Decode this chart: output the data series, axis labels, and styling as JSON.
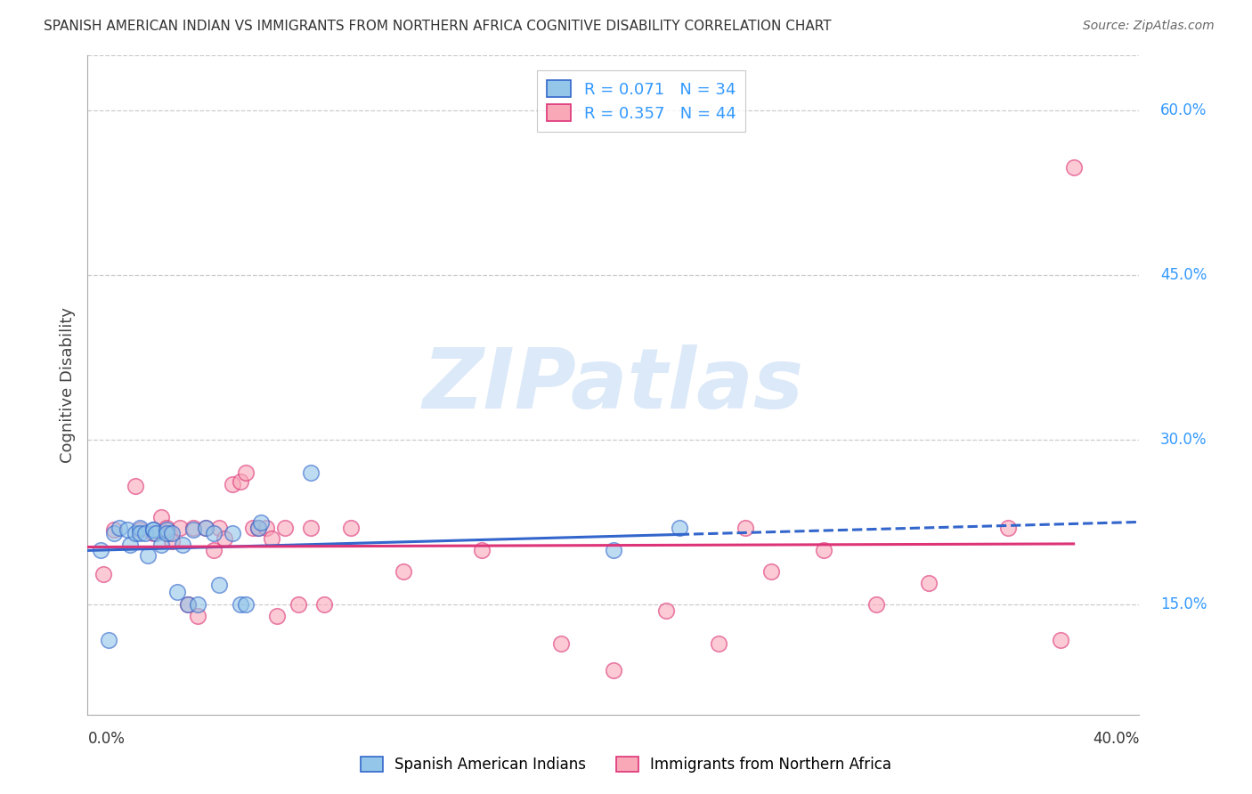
{
  "title": "SPANISH AMERICAN INDIAN VS IMMIGRANTS FROM NORTHERN AFRICA COGNITIVE DISABILITY CORRELATION CHART",
  "source": "Source: ZipAtlas.com",
  "ylabel": "Cognitive Disability",
  "label1": "Spanish American Indians",
  "label2": "Immigrants from Northern Africa",
  "color1": "#93c6e8",
  "color2": "#f9a8b8",
  "trendline1_color": "#3366cc",
  "trendline2_color": "#dd3377",
  "legend_text1": "R = 0.071   N = 34",
  "legend_text2": "R = 0.357   N = 44",
  "legend_color": "#3399ff",
  "watermark_text": "ZIPatlas",
  "watermark_color": "#dce9f8",
  "xmin": 0.0,
  "xmax": 0.4,
  "ymin": 0.05,
  "ymax": 0.65,
  "ytick_vals": [
    0.15,
    0.3,
    0.45,
    0.6
  ],
  "ytick_labels": [
    "15.0%",
    "30.0%",
    "45.0%",
    "60.0%"
  ],
  "blue_x": [
    0.005,
    0.008,
    0.01,
    0.012,
    0.015,
    0.016,
    0.018,
    0.02,
    0.02,
    0.022,
    0.023,
    0.025,
    0.025,
    0.026,
    0.028,
    0.03,
    0.03,
    0.032,
    0.034,
    0.036,
    0.038,
    0.04,
    0.042,
    0.045,
    0.048,
    0.05,
    0.055,
    0.058,
    0.06,
    0.065,
    0.066,
    0.085,
    0.2,
    0.225
  ],
  "blue_y": [
    0.2,
    0.118,
    0.215,
    0.22,
    0.218,
    0.205,
    0.215,
    0.22,
    0.215,
    0.215,
    0.195,
    0.218,
    0.218,
    0.215,
    0.205,
    0.218,
    0.215,
    0.215,
    0.162,
    0.205,
    0.15,
    0.218,
    0.15,
    0.22,
    0.215,
    0.168,
    0.215,
    0.15,
    0.15,
    0.22,
    0.225,
    0.27,
    0.2,
    0.22
  ],
  "pink_x": [
    0.006,
    0.01,
    0.018,
    0.02,
    0.025,
    0.028,
    0.03,
    0.031,
    0.032,
    0.035,
    0.038,
    0.04,
    0.042,
    0.045,
    0.048,
    0.05,
    0.052,
    0.055,
    0.058,
    0.06,
    0.063,
    0.065,
    0.068,
    0.07,
    0.072,
    0.075,
    0.08,
    0.085,
    0.09,
    0.1,
    0.12,
    0.15,
    0.18,
    0.2,
    0.22,
    0.24,
    0.25,
    0.26,
    0.28,
    0.3,
    0.32,
    0.35,
    0.37,
    0.375
  ],
  "pink_y": [
    0.178,
    0.218,
    0.258,
    0.218,
    0.215,
    0.23,
    0.22,
    0.215,
    0.208,
    0.22,
    0.15,
    0.22,
    0.14,
    0.22,
    0.2,
    0.22,
    0.21,
    0.26,
    0.262,
    0.27,
    0.22,
    0.22,
    0.22,
    0.21,
    0.14,
    0.22,
    0.15,
    0.22,
    0.15,
    0.22,
    0.18,
    0.2,
    0.115,
    0.09,
    0.145,
    0.115,
    0.22,
    0.18,
    0.2,
    0.15,
    0.17,
    0.22,
    0.118,
    0.548
  ]
}
